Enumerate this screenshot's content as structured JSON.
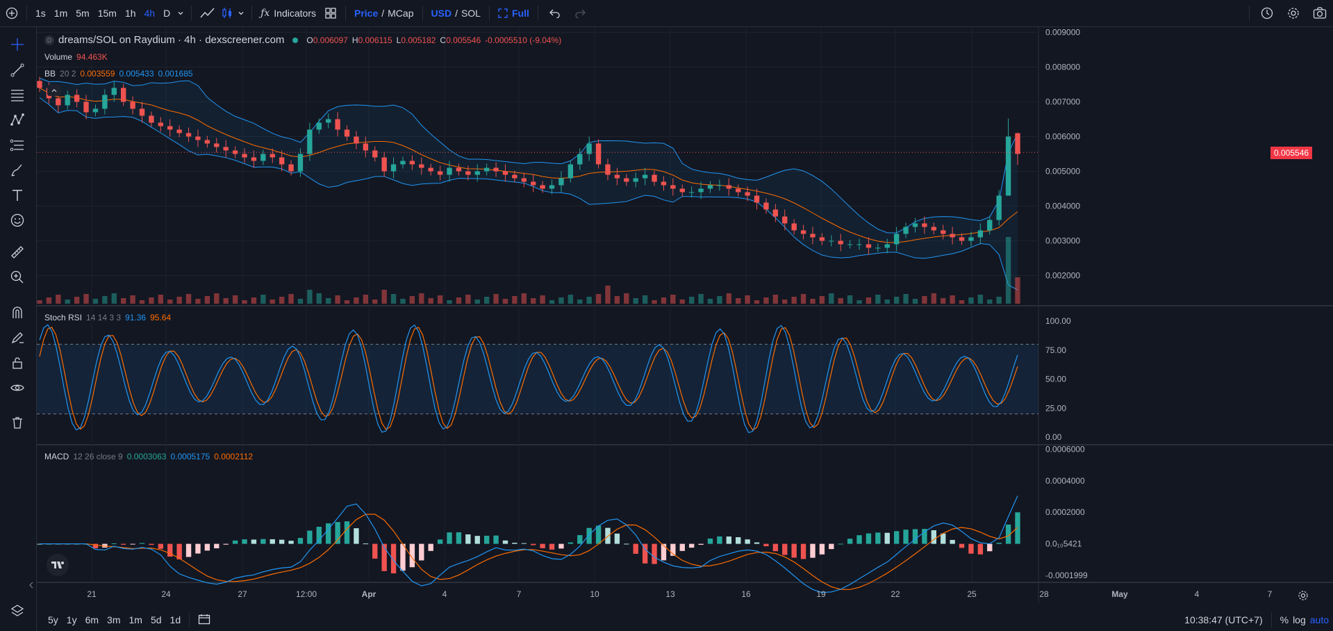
{
  "toolbar": {
    "timeframes": [
      "1s",
      "1m",
      "5m",
      "15m",
      "1h",
      "4h",
      "D"
    ],
    "active_timeframe": "4h",
    "indicators_label": "Indicators",
    "price_label": "Price",
    "price_sep": "/",
    "mcap_label": "MCap",
    "usd_label": "USD",
    "currency_sep": "/",
    "sol_label": "SOL",
    "full_label": "Full"
  },
  "header": {
    "symbol_badge": "D",
    "title": "dreams/SOL on Raydium · 4h · dexscreener.com",
    "o_label": "O",
    "o_value": "0.006097",
    "h_label": "H",
    "h_value": "0.006115",
    "l_label": "L",
    "l_value": "0.005182",
    "c_label": "C",
    "c_value": "0.005546",
    "change": "-0.0005510 (-9.04%)"
  },
  "volume_legend": {
    "label": "Volume",
    "value": "94.463K"
  },
  "bb_legend": {
    "label": "BB",
    "params": "20 2",
    "v1": "0.003559",
    "v2": "0.005433",
    "v3": "0.001685"
  },
  "stoch_legend": {
    "label": "Stoch RSI",
    "params": "14 14 3 3",
    "k": "91.36",
    "d": "95.64"
  },
  "macd_legend": {
    "label": "MACD",
    "params": "12 26 close 9",
    "v1": "0.0003063",
    "v2": "0.0005175",
    "v3": "0.0002112"
  },
  "price_axis": [
    "0.009000",
    "0.008000",
    "0.007000",
    "0.006000",
    "0.005000",
    "0.004000",
    "0.003000",
    "0.002000"
  ],
  "current_price": "0.005546",
  "stoch_axis": [
    "100.00",
    "75.00",
    "50.00",
    "25.00",
    "0.00"
  ],
  "macd_axis": [
    "0.0006000",
    "0.0004000",
    "0.0002000",
    "0.0₁₀5421",
    "-0.0001999"
  ],
  "time_axis": [
    "21",
    "24",
    "27",
    "12:00",
    "Apr",
    "4",
    "7",
    "10",
    "13",
    "16",
    "19",
    "22",
    "25",
    "28",
    "May",
    "4",
    "7"
  ],
  "bottom": {
    "ranges": [
      "5y",
      "1y",
      "6m",
      "3m",
      "1m",
      "5d",
      "1d"
    ],
    "clock": "10:38:47 (UTC+7)",
    "pct_label": "%",
    "log_label": "log",
    "auto_label": "auto"
  },
  "colors": {
    "up": "#26a69a",
    "down": "#ef5350",
    "bb": "#2196f3",
    "basis": "#ff6d00",
    "accent": "#2962ff"
  },
  "chart_data": {
    "type": "candlestick",
    "close_series": [
      0.0074,
      0.0071,
      0.0069,
      0.0072,
      0.007,
      0.0067,
      0.0068,
      0.0072,
      0.0074,
      0.007,
      0.0068,
      0.0066,
      0.0064,
      0.0063,
      0.0062,
      0.0061,
      0.006,
      0.0059,
      0.0058,
      0.0057,
      0.0056,
      0.0055,
      0.0054,
      0.0053,
      0.0055,
      0.0054,
      0.0052,
      0.005,
      0.0055,
      0.0062,
      0.0064,
      0.0065,
      0.0062,
      0.006,
      0.0058,
      0.0056,
      0.0054,
      0.005,
      0.0052,
      0.0053,
      0.0052,
      0.0051,
      0.005,
      0.0049,
      0.0051,
      0.005,
      0.0049,
      0.005,
      0.0051,
      0.005,
      0.0049,
      0.0048,
      0.0047,
      0.0046,
      0.0045,
      0.0046,
      0.0048,
      0.0052,
      0.0055,
      0.0058,
      0.0052,
      0.0049,
      0.0048,
      0.0047,
      0.0048,
      0.0049,
      0.0047,
      0.0046,
      0.0045,
      0.0044,
      0.0044,
      0.0045,
      0.0046,
      0.0046,
      0.0045,
      0.0044,
      0.0043,
      0.0041,
      0.0039,
      0.0037,
      0.0035,
      0.0033,
      0.0032,
      0.0031,
      0.003,
      0.003,
      0.0029,
      0.0029,
      0.0029,
      0.0028,
      0.0028,
      0.0029,
      0.0032,
      0.0034,
      0.0035,
      0.0034,
      0.0033,
      0.0032,
      0.0031,
      0.003,
      0.0031,
      0.0033,
      0.0036,
      0.0043,
      0.006,
      0.0055
    ],
    "volume_note": "volume shown as bars beneath candles",
    "indicators": [
      "Volume",
      "BB 20 2",
      "Stoch RSI 14 14 3 3",
      "MACD 12 26 close 9"
    ]
  }
}
